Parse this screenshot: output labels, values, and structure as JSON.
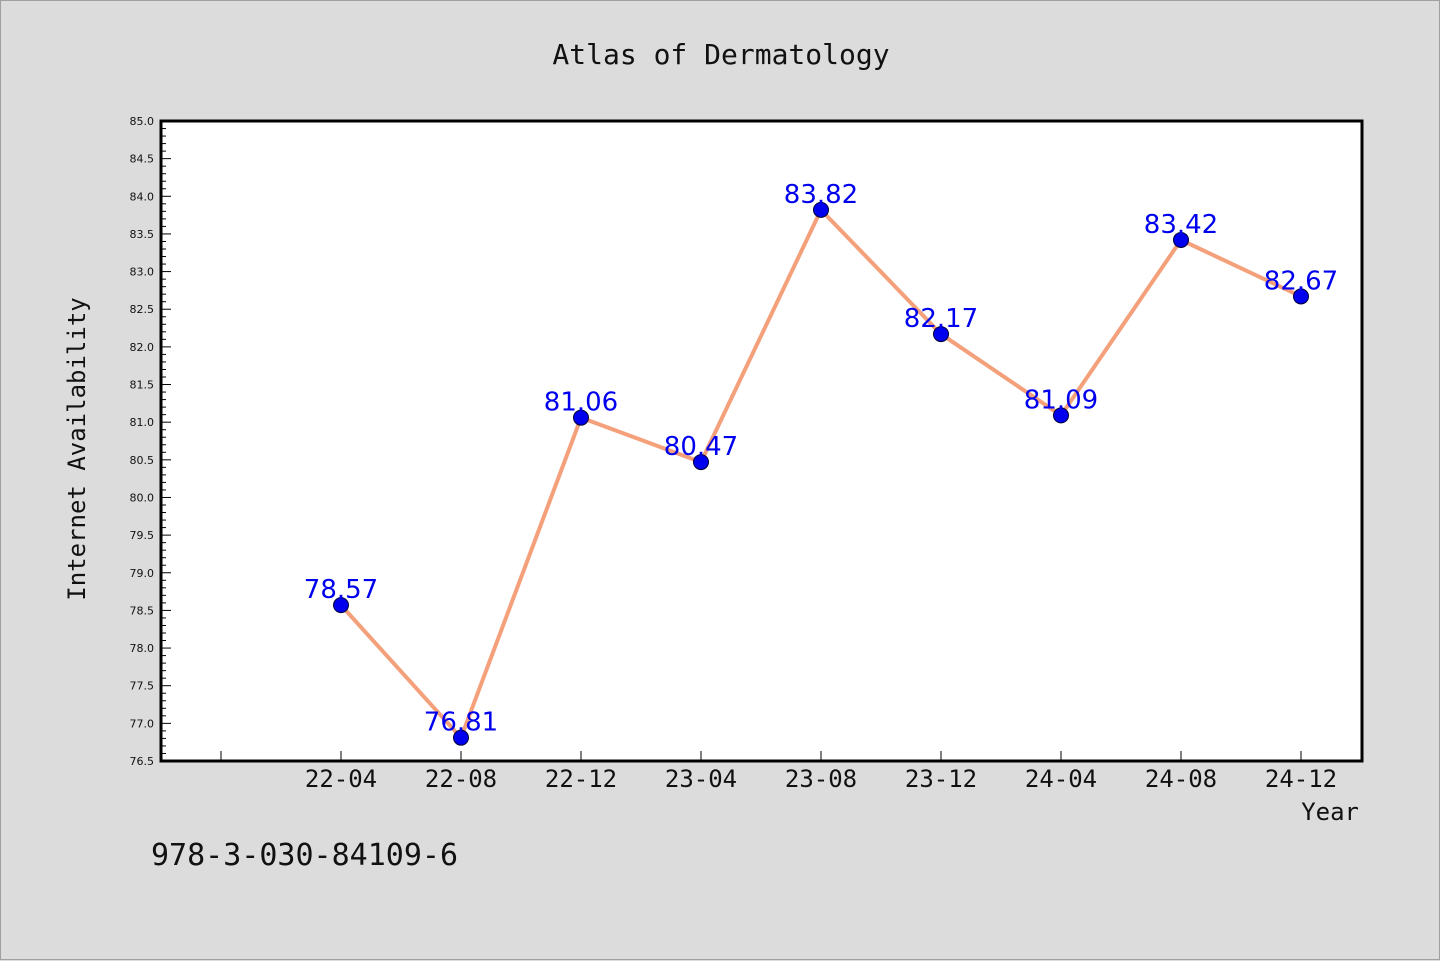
{
  "chart_data": {
    "type": "line",
    "title": "Atlas of Dermatology",
    "xlabel": "Year",
    "ylabel": "Internet Availability",
    "categories": [
      "22-04",
      "22-08",
      "22-12",
      "23-04",
      "23-08",
      "23-12",
      "24-04",
      "24-08",
      "24-12"
    ],
    "series": [
      {
        "values": [
          78.57,
          76.81,
          81.06,
          80.47,
          83.82,
          82.17,
          81.09,
          83.42,
          82.67
        ]
      }
    ],
    "ylim": [
      76.5,
      85.0
    ],
    "yticks": [
      "76.5",
      "77.0",
      "77.5",
      "78.0",
      "78.5",
      "79.0",
      "79.5",
      "80.0",
      "80.5",
      "81.0",
      "81.5",
      "82.0",
      "82.5",
      "83.0",
      "83.5",
      "84.0",
      "84.5",
      "85.0"
    ],
    "data_labels": [
      "78.57",
      "76.81",
      "81.06",
      "80.47",
      "83.82",
      "82.17",
      "81.09",
      "83.42",
      "82.67"
    ],
    "grid": false,
    "line_color": "#f4a07a",
    "marker_color": "#0000ee",
    "label_color": "#0000ee"
  },
  "footer": {
    "code": "978-3-030-84109-6"
  }
}
